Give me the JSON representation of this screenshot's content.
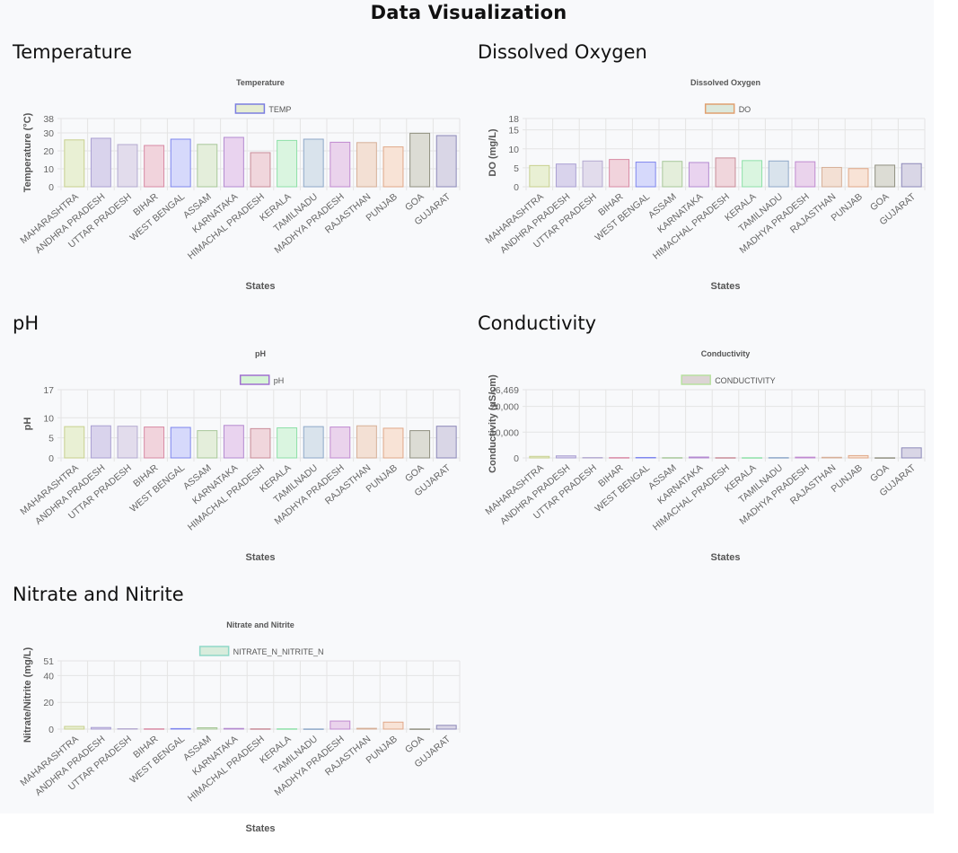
{
  "page_title": "Data Visualization",
  "colors": {
    "bar_fills": [
      "#e9f0d4",
      "#d9d3ec",
      "#e2dcec",
      "#f1d3dc",
      "#d6d9fb",
      "#e4eedb",
      "#e9d3ef",
      "#f0d6dc",
      "#daf5e0",
      "#d9e3ec",
      "#ead3ec",
      "#f3e0d4",
      "#f8e3d6",
      "#dcdcd4",
      "#d9d6e6"
    ],
    "bar_strokes": [
      "#c8d08e",
      "#aaa0d2",
      "#b4aad0",
      "#d88aa4",
      "#7f86ee",
      "#a8c89a",
      "#b48ad0",
      "#c88c98",
      "#8ee0a8",
      "#8ea8c8",
      "#c08ad0",
      "#d6b098",
      "#e0a888",
      "#909080",
      "#8c88b8"
    ]
  },
  "charts": [
    {
      "heading": "Temperature",
      "chart_data": {
        "type": "bar",
        "title": "Temperature",
        "legend": "TEMP",
        "legend_fill": "#e6edd2",
        "legend_stroke": "#7b7ee0",
        "categories": [
          "MAHARASHTRA",
          "ANDHRA PRADESH",
          "UTTAR PRADESH",
          "BIHAR",
          "WEST BENGAL",
          "ASSAM",
          "KARNATAKA",
          "HIMACHAL PRADESH",
          "KERALA",
          "TAMILNADU",
          "MADHYA PRADESH",
          "RAJASTHAN",
          "PUNJAB",
          "GOA",
          "GUJARAT"
        ],
        "values": [
          26.1,
          27.0,
          23.5,
          23.0,
          26.5,
          23.6,
          27.5,
          19.0,
          25.8,
          26.5,
          24.8,
          24.6,
          22.2,
          29.8,
          28.5
        ],
        "yticks": [
          "0",
          "10",
          "20",
          "30",
          "38"
        ],
        "ytick_values": [
          0,
          10,
          20,
          30,
          38
        ],
        "ylim": [
          0,
          38
        ],
        "xlabel": "States",
        "ylabel": "Temperature (°C)"
      }
    },
    {
      "heading": "Dissolved Oxygen",
      "chart_data": {
        "type": "bar",
        "title": "Dissolved Oxygen",
        "legend": "DO",
        "legend_fill": "#dce8dc",
        "legend_stroke": "#e0a070",
        "categories": [
          "MAHARASHTRA",
          "ANDHRA PRADESH",
          "UTTAR PRADESH",
          "BIHAR",
          "WEST BENGAL",
          "ASSAM",
          "KARNATAKA",
          "HIMACHAL PRADESH",
          "KERALA",
          "TAMILNADU",
          "MADHYA PRADESH",
          "RAJASTHAN",
          "PUNJAB",
          "GOA",
          "GUJARAT"
        ],
        "values": [
          5.6,
          6.0,
          6.8,
          7.2,
          6.5,
          6.7,
          6.4,
          7.6,
          6.9,
          6.8,
          6.6,
          5.1,
          4.8,
          5.7,
          6.1
        ],
        "yticks": [
          "0",
          "5",
          "10",
          "15",
          "18"
        ],
        "ytick_values": [
          0,
          5,
          10,
          15,
          18
        ],
        "ylim": [
          0,
          18
        ],
        "xlabel": "States",
        "ylabel": "DO (mg/L)"
      }
    },
    {
      "heading": "pH",
      "chart_data": {
        "type": "bar",
        "title": "pH",
        "legend": "pH",
        "legend_fill": "#d6f4d6",
        "legend_stroke": "#a070d0",
        "categories": [
          "MAHARASHTRA",
          "ANDHRA PRADESH",
          "UTTAR PRADESH",
          "BIHAR",
          "WEST BENGAL",
          "ASSAM",
          "KARNATAKA",
          "HIMACHAL PRADESH",
          "KERALA",
          "TAMILNADU",
          "MADHYA PRADESH",
          "RAJASTHAN",
          "PUNJAB",
          "GOA",
          "GUJARAT"
        ],
        "values": [
          7.8,
          8.0,
          7.9,
          7.7,
          7.6,
          6.8,
          8.1,
          7.3,
          7.5,
          7.8,
          7.7,
          8.0,
          7.4,
          6.8,
          7.9
        ],
        "yticks": [
          "0",
          "5",
          "10",
          "17"
        ],
        "ytick_values": [
          0,
          5,
          10,
          17
        ],
        "ylim": [
          0,
          17
        ],
        "xlabel": "States",
        "ylabel": "pH"
      }
    },
    {
      "heading": "Conductivity",
      "chart_data": {
        "type": "bar",
        "title": "Conductivity",
        "legend": "CONDUCTIVITY",
        "legend_fill": "#dcd4d4",
        "legend_stroke": "#b8e0a0",
        "categories": [
          "MAHARASHTRA",
          "ANDHRA PRADESH",
          "UTTAR PRADESH",
          "BIHAR",
          "WEST BENGAL",
          "ASSAM",
          "KARNATAKA",
          "HIMACHAL PRADESH",
          "KERALA",
          "TAMILNADU",
          "MADHYA PRADESH",
          "RAJASTHAN",
          "PUNJAB",
          "GOA",
          "GUJARAT"
        ],
        "values": [
          600,
          800,
          150,
          120,
          180,
          100,
          350,
          90,
          80,
          120,
          300,
          250,
          900,
          60,
          3900
        ],
        "yticks": [
          "0",
          "10,000",
          "20,000",
          "26,469"
        ],
        "ytick_values": [
          0,
          10000,
          20000,
          26469
        ],
        "ylim": [
          0,
          26469
        ],
        "xlabel": "States",
        "ylabel": "Conductivity (µS/cm)"
      }
    },
    {
      "heading": "Nitrate and Nitrite",
      "chart_data": {
        "type": "bar",
        "title": "Nitrate and Nitrite",
        "legend": "NITRATE_N_NITRITE_N",
        "legend_fill": "#d8ecdc",
        "legend_stroke": "#90d8c8",
        "categories": [
          "MAHARASHTRA",
          "ANDHRA PRADESH",
          "UTTAR PRADESH",
          "BIHAR",
          "WEST BENGAL",
          "ASSAM",
          "KARNATAKA",
          "HIMACHAL PRADESH",
          "KERALA",
          "TAMILNADU",
          "MADHYA PRADESH",
          "RAJASTHAN",
          "PUNJAB",
          "GOA",
          "GUJARAT"
        ],
        "values": [
          2.0,
          1.2,
          0.3,
          0.2,
          0.4,
          1.0,
          0.5,
          0.2,
          0.2,
          0.1,
          6.0,
          0.6,
          5.2,
          0.1,
          2.8
        ],
        "yticks": [
          "0",
          "20",
          "40",
          "51"
        ],
        "ytick_values": [
          0,
          20,
          40,
          51
        ],
        "ylim": [
          0,
          51
        ],
        "xlabel": "States",
        "ylabel": "Nitrate/Nitrite (mg/L)"
      }
    }
  ]
}
